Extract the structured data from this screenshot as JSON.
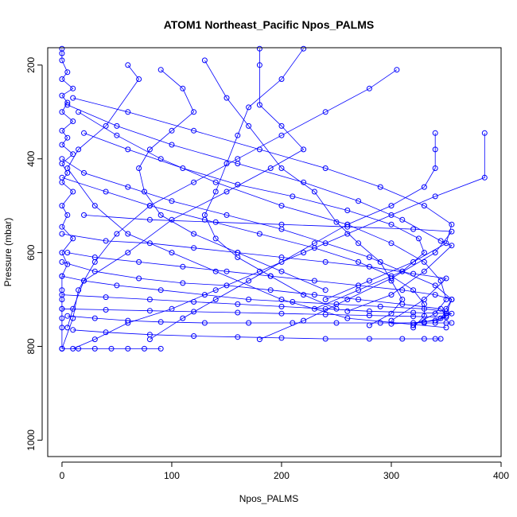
{
  "chart_data": {
    "type": "scatter",
    "title": "ATOM1 Northeast_Pacific Npos_PALMS",
    "xlabel": "Npos_PALMS",
    "ylabel": "Pressure (mbar)",
    "xlim": [
      -13,
      400
    ],
    "ylim": [
      1035,
      163
    ],
    "y_reversed": true,
    "x_ticks": [
      0,
      100,
      200,
      300,
      400
    ],
    "y_ticks": [
      200,
      400,
      600,
      800,
      1000
    ],
    "grid": false,
    "legend": "none",
    "marker": "open-circle",
    "color": "#0000ff",
    "series": [
      {
        "values": [
          [
            0,
            165
          ],
          [
            0,
            175
          ],
          [
            0,
            190
          ],
          [
            5,
            215
          ],
          [
            0,
            230
          ],
          [
            10,
            250
          ],
          [
            0,
            265
          ],
          [
            5,
            280
          ],
          [
            0,
            300
          ],
          [
            10,
            320
          ],
          [
            0,
            340
          ],
          [
            5,
            355
          ],
          [
            0,
            370
          ],
          [
            10,
            390
          ],
          [
            0,
            410
          ],
          [
            5,
            430
          ],
          [
            0,
            450
          ],
          [
            10,
            470
          ],
          [
            0,
            500
          ],
          [
            5,
            520
          ],
          [
            0,
            545
          ],
          [
            10,
            570
          ],
          [
            0,
            600
          ],
          [
            5,
            625
          ],
          [
            0,
            650
          ],
          [
            0,
            680
          ],
          [
            0,
            700
          ],
          [
            0,
            720
          ],
          [
            0,
            740
          ],
          [
            0,
            760
          ],
          [
            0,
            805
          ]
        ]
      },
      {
        "values": [
          [
            60,
            200
          ],
          [
            70,
            230
          ],
          [
            40,
            330
          ],
          [
            15,
            380
          ],
          [
            5,
            420
          ],
          [
            30,
            500
          ],
          [
            60,
            560
          ],
          [
            100,
            600
          ],
          [
            140,
            640
          ],
          [
            200,
            700
          ],
          [
            260,
            740
          ],
          [
            350,
            760
          ]
        ]
      },
      {
        "values": [
          [
            180,
            165
          ],
          [
            180,
            200
          ],
          [
            180,
            285
          ],
          [
            200,
            330
          ],
          [
            220,
            380
          ],
          [
            190,
            420
          ],
          [
            150,
            470
          ],
          [
            100,
            530
          ],
          [
            60,
            600
          ],
          [
            20,
            660
          ],
          [
            10,
            720
          ],
          [
            5,
            760
          ]
        ]
      },
      {
        "values": [
          [
            305,
            210
          ],
          [
            280,
            250
          ],
          [
            240,
            300
          ],
          [
            200,
            350
          ],
          [
            160,
            400
          ],
          [
            120,
            450
          ],
          [
            80,
            500
          ],
          [
            50,
            560
          ],
          [
            30,
            620
          ],
          [
            15,
            680
          ],
          [
            10,
            740
          ],
          [
            0,
            805
          ]
        ]
      },
      {
        "values": [
          [
            385,
            345
          ],
          [
            385,
            440
          ],
          [
            340,
            480
          ],
          [
            300,
            520
          ],
          [
            260,
            560
          ],
          [
            220,
            600
          ],
          [
            180,
            640
          ],
          [
            140,
            680
          ],
          [
            100,
            720
          ],
          [
            60,
            750
          ],
          [
            30,
            785
          ],
          [
            10,
            805
          ]
        ]
      },
      {
        "values": [
          [
            340,
            345
          ],
          [
            340,
            380
          ],
          [
            340,
            420
          ],
          [
            330,
            460
          ],
          [
            300,
            500
          ],
          [
            260,
            540
          ],
          [
            230,
            580
          ],
          [
            200,
            620
          ],
          [
            170,
            660
          ],
          [
            140,
            700
          ],
          [
            110,
            740
          ],
          [
            80,
            785
          ]
        ]
      },
      {
        "values": [
          [
            10,
            270
          ],
          [
            60,
            300
          ],
          [
            120,
            340
          ],
          [
            180,
            380
          ],
          [
            240,
            420
          ],
          [
            290,
            460
          ],
          [
            330,
            500
          ],
          [
            355,
            540
          ],
          [
            350,
            580
          ],
          [
            320,
            620
          ],
          [
            280,
            660
          ],
          [
            240,
            700
          ]
        ]
      },
      {
        "values": [
          [
            5,
            285
          ],
          [
            50,
            330
          ],
          [
            100,
            370
          ],
          [
            160,
            410
          ],
          [
            220,
            450
          ],
          [
            270,
            490
          ],
          [
            310,
            530
          ],
          [
            345,
            575
          ],
          [
            355,
            585
          ],
          [
            330,
            640
          ],
          [
            300,
            690
          ],
          [
            260,
            725
          ]
        ]
      },
      {
        "values": [
          [
            20,
            520
          ],
          [
            80,
            530
          ],
          [
            140,
            535
          ],
          [
            200,
            540
          ],
          [
            260,
            545
          ],
          [
            320,
            550
          ],
          [
            355,
            555
          ],
          [
            340,
            600
          ],
          [
            300,
            655
          ],
          [
            260,
            700
          ],
          [
            220,
            745
          ],
          [
            180,
            785
          ]
        ]
      },
      {
        "values": [
          [
            0,
            560
          ],
          [
            40,
            575
          ],
          [
            80,
            580
          ],
          [
            120,
            590
          ],
          [
            160,
            600
          ],
          [
            200,
            610
          ],
          [
            240,
            620
          ],
          [
            280,
            630
          ],
          [
            320,
            645
          ],
          [
            350,
            655
          ],
          [
            330,
            700
          ],
          [
            300,
            745
          ]
        ]
      },
      {
        "values": [
          [
            0,
            620
          ],
          [
            30,
            640
          ],
          [
            70,
            655
          ],
          [
            110,
            665
          ],
          [
            150,
            670
          ],
          [
            190,
            680
          ],
          [
            230,
            690
          ],
          [
            270,
            700
          ],
          [
            310,
            710
          ],
          [
            345,
            720
          ],
          [
            350,
            735
          ],
          [
            340,
            750
          ]
        ]
      },
      {
        "values": [
          [
            0,
            690
          ],
          [
            40,
            695
          ],
          [
            80,
            700
          ],
          [
            120,
            705
          ],
          [
            160,
            710
          ],
          [
            200,
            715
          ],
          [
            240,
            720
          ],
          [
            280,
            725
          ],
          [
            320,
            728
          ],
          [
            355,
            730
          ],
          [
            340,
            745
          ],
          [
            320,
            750
          ]
        ]
      },
      {
        "values": [
          [
            0,
            720
          ],
          [
            40,
            722
          ],
          [
            80,
            724
          ],
          [
            120,
            726
          ],
          [
            160,
            728
          ],
          [
            200,
            730
          ],
          [
            240,
            732
          ],
          [
            280,
            734
          ],
          [
            320,
            736
          ],
          [
            350,
            738
          ],
          [
            330,
            748
          ],
          [
            300,
            752
          ]
        ]
      },
      {
        "values": [
          [
            5,
            735
          ],
          [
            30,
            740
          ],
          [
            60,
            745
          ],
          [
            90,
            748
          ],
          [
            130,
            750
          ],
          [
            170,
            750
          ],
          [
            210,
            750
          ],
          [
            250,
            750
          ],
          [
            290,
            750
          ],
          [
            330,
            750
          ],
          [
            350,
            750
          ],
          [
            355,
            750
          ]
        ]
      },
      {
        "values": [
          [
            10,
            765
          ],
          [
            40,
            770
          ],
          [
            80,
            775
          ],
          [
            120,
            778
          ],
          [
            160,
            780
          ],
          [
            200,
            782
          ],
          [
            240,
            784
          ],
          [
            280,
            784
          ],
          [
            310,
            784
          ],
          [
            330,
            784
          ],
          [
            340,
            784
          ],
          [
            345,
            784
          ]
        ]
      },
      {
        "values": [
          [
            0,
            805
          ],
          [
            15,
            805
          ],
          [
            30,
            805
          ],
          [
            45,
            805
          ],
          [
            60,
            805
          ],
          [
            75,
            805
          ],
          [
            90,
            805
          ]
        ]
      },
      {
        "values": [
          [
            15,
            300
          ],
          [
            50,
            350
          ],
          [
            90,
            400
          ],
          [
            140,
            450
          ],
          [
            200,
            500
          ],
          [
            260,
            540
          ],
          [
            300,
            580
          ],
          [
            330,
            620
          ],
          [
            345,
            660
          ],
          [
            350,
            700
          ],
          [
            340,
            730
          ],
          [
            320,
            755
          ]
        ]
      },
      {
        "values": [
          [
            130,
            190
          ],
          [
            150,
            270
          ],
          [
            170,
            330
          ],
          [
            200,
            420
          ],
          [
            230,
            470
          ],
          [
            250,
            535
          ],
          [
            270,
            580
          ],
          [
            290,
            620
          ],
          [
            300,
            660
          ],
          [
            310,
            700
          ],
          [
            300,
            730
          ],
          [
            280,
            755
          ]
        ]
      },
      {
        "values": [
          [
            20,
            345
          ],
          [
            60,
            380
          ],
          [
            110,
            420
          ],
          [
            160,
            455
          ],
          [
            210,
            480
          ],
          [
            260,
            510
          ],
          [
            300,
            540
          ],
          [
            325,
            570
          ],
          [
            330,
            600
          ],
          [
            310,
            640
          ],
          [
            270,
            680
          ],
          [
            230,
            720
          ]
        ]
      },
      {
        "values": [
          [
            0,
            440
          ],
          [
            40,
            470
          ],
          [
            80,
            500
          ],
          [
            130,
            530
          ],
          [
            180,
            560
          ],
          [
            230,
            590
          ],
          [
            270,
            620
          ],
          [
            300,
            650
          ],
          [
            320,
            680
          ],
          [
            330,
            710
          ],
          [
            330,
            735
          ],
          [
            320,
            760
          ]
        ]
      },
      {
        "values": [
          [
            0,
            400
          ],
          [
            20,
            430
          ],
          [
            60,
            460
          ],
          [
            100,
            490
          ],
          [
            150,
            520
          ],
          [
            200,
            550
          ],
          [
            240,
            580
          ],
          [
            280,
            610
          ],
          [
            310,
            640
          ],
          [
            340,
            670
          ],
          [
            355,
            700
          ],
          [
            350,
            730
          ]
        ]
      },
      {
        "values": [
          [
            5,
            600
          ],
          [
            30,
            610
          ],
          [
            70,
            620
          ],
          [
            110,
            630
          ],
          [
            150,
            640
          ],
          [
            190,
            650
          ],
          [
            230,
            660
          ],
          [
            270,
            670
          ],
          [
            310,
            680
          ],
          [
            340,
            690
          ],
          [
            355,
            700
          ],
          [
            350,
            720
          ]
        ]
      },
      {
        "values": [
          [
            0,
            650
          ],
          [
            20,
            660
          ],
          [
            50,
            670
          ],
          [
            90,
            680
          ],
          [
            130,
            690
          ],
          [
            170,
            700
          ],
          [
            210,
            705
          ],
          [
            250,
            710
          ],
          [
            290,
            715
          ],
          [
            330,
            720
          ],
          [
            350,
            725
          ],
          [
            345,
            740
          ]
        ]
      },
      {
        "values": [
          [
            90,
            210
          ],
          [
            110,
            250
          ],
          [
            120,
            300
          ],
          [
            100,
            340
          ],
          [
            80,
            380
          ],
          [
            70,
            420
          ],
          [
            75,
            470
          ],
          [
            90,
            520
          ],
          [
            120,
            560
          ],
          [
            160,
            600
          ],
          [
            200,
            640
          ],
          [
            240,
            680
          ]
        ]
      },
      {
        "values": [
          [
            220,
            165
          ],
          [
            200,
            230
          ],
          [
            170,
            290
          ],
          [
            160,
            350
          ],
          [
            150,
            410
          ],
          [
            140,
            470
          ],
          [
            130,
            520
          ],
          [
            140,
            570
          ],
          [
            160,
            610
          ],
          [
            190,
            650
          ],
          [
            220,
            690
          ],
          [
            250,
            720
          ]
        ]
      }
    ]
  }
}
